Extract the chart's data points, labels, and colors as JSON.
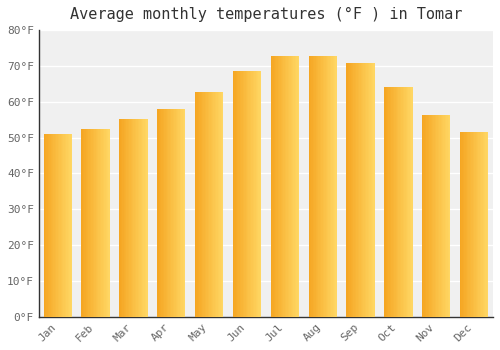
{
  "title": "Average monthly temperatures (°F ) in Tomar",
  "months": [
    "Jan",
    "Feb",
    "Mar",
    "Apr",
    "May",
    "Jun",
    "Jul",
    "Aug",
    "Sep",
    "Oct",
    "Nov",
    "Dec"
  ],
  "values": [
    50.9,
    52.5,
    55.2,
    58.1,
    62.6,
    68.5,
    72.7,
    72.7,
    70.9,
    64.2,
    56.3,
    51.6
  ],
  "bar_color_left": "#F5A623",
  "bar_color_right": "#FFD966",
  "background_color": "#FFFFFF",
  "plot_bg_color": "#F0F0F0",
  "grid_color": "#FFFFFF",
  "ylim": [
    0,
    80
  ],
  "ytick_step": 10,
  "title_fontsize": 11,
  "tick_fontsize": 8,
  "bar_width": 0.75
}
